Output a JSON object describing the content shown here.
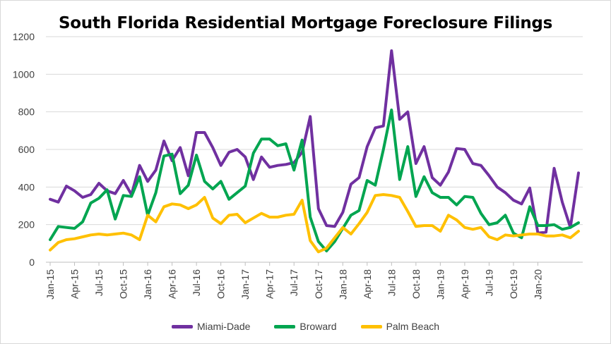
{
  "chart_data": {
    "type": "line",
    "title": "South Florida Residential Mortgage Foreclosure Filings",
    "xlabel": "",
    "ylabel": "",
    "ylim": [
      0,
      1200
    ],
    "yticks": [
      "0",
      "200",
      "400",
      "600",
      "800",
      "1000",
      "1200"
    ],
    "x_tick_labels": [
      "Jan-15",
      "Apr-15",
      "Jul-15",
      "Oct-15",
      "Jan-16",
      "Apr-16",
      "Jul-16",
      "Oct-16",
      "Jan-17",
      "Apr-17",
      "Jul-17",
      "Oct-17",
      "Jan-18",
      "Apr-18",
      "Jul-18",
      "Oct-18",
      "Jan-19",
      "Apr-19",
      "Jul-19",
      "Oct-19",
      "Jan-20"
    ],
    "x_start": "Jan-15",
    "x_end": "May-20",
    "grid": "horizontal",
    "legend_position": "bottom",
    "series": [
      {
        "name": "Miami-Dade",
        "color": "#7030A0",
        "values": [
          335,
          320,
          405,
          380,
          345,
          360,
          420,
          380,
          365,
          435,
          360,
          515,
          430,
          490,
          645,
          540,
          610,
          460,
          690,
          690,
          610,
          515,
          585,
          600,
          560,
          440,
          560,
          505,
          515,
          520,
          530,
          585,
          775,
          285,
          195,
          190,
          265,
          415,
          450,
          615,
          715,
          725,
          1125,
          760,
          800,
          525,
          615,
          450,
          410,
          480,
          605,
          600,
          525,
          515,
          460,
          400,
          370,
          330,
          310,
          395,
          155,
          160,
          500,
          320,
          185,
          475
        ]
      },
      {
        "name": "Broward",
        "color": "#00A550",
        "values": [
          120,
          190,
          185,
          180,
          215,
          315,
          340,
          385,
          230,
          355,
          350,
          455,
          250,
          370,
          565,
          575,
          365,
          410,
          570,
          430,
          390,
          430,
          335,
          370,
          405,
          580,
          655,
          655,
          620,
          630,
          490,
          650,
          240,
          110,
          60,
          110,
          180,
          250,
          275,
          435,
          410,
          600,
          810,
          440,
          615,
          350,
          455,
          370,
          345,
          345,
          305,
          350,
          345,
          260,
          200,
          210,
          250,
          155,
          130,
          295,
          195,
          195,
          200,
          175,
          185,
          210
        ]
      },
      {
        "name": "Palm Beach",
        "color": "#FFC000",
        "values": [
          65,
          105,
          120,
          125,
          135,
          145,
          150,
          145,
          150,
          155,
          145,
          120,
          250,
          215,
          295,
          310,
          305,
          285,
          305,
          345,
          235,
          205,
          250,
          255,
          210,
          235,
          260,
          240,
          240,
          250,
          255,
          330,
          115,
          55,
          75,
          130,
          185,
          150,
          205,
          265,
          355,
          360,
          355,
          345,
          270,
          190,
          195,
          195,
          165,
          250,
          225,
          185,
          175,
          185,
          135,
          120,
          145,
          140,
          145,
          150,
          150,
          140,
          140,
          145,
          130,
          165
        ]
      }
    ]
  }
}
